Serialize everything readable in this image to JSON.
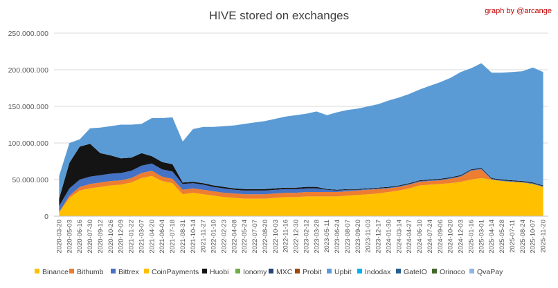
{
  "chart_data": {
    "type": "area",
    "title": "HIVE stored on exchanges",
    "credit": "graph by @arcange",
    "xlabel": "",
    "ylabel": "",
    "ylim": [
      0,
      250000000
    ],
    "y_ticks": [
      0,
      50000000,
      100000000,
      150000000,
      200000000,
      250000000
    ],
    "y_tick_labels": [
      "0",
      "50.000.000",
      "100.000.000",
      "150.000.000",
      "200.000.000",
      "250.000.000"
    ],
    "grid": true,
    "legend_position": "bottom",
    "x_tick_labels": [
      "2020-03-20",
      "2020-05-03",
      "2020-06-16",
      "2020-07-30",
      "2020-09-12",
      "2020-10-26",
      "2020-12-09",
      "2021-01-22",
      "2021-03-07",
      "2021-04-20",
      "2021-06-04",
      "2021-07-18",
      "2021-08-31",
      "2021-10-14",
      "2021-11-27",
      "2022-01-10",
      "2022-02-23",
      "2022-04-08",
      "2022-05-24",
      "2022-07-07",
      "2022-08-20",
      "2022-10-03",
      "2022-11-16",
      "2022-12-30",
      "2023-02-12",
      "2023-03-28",
      "2023-05-11",
      "2023-06-24",
      "2023-08-07",
      "2023-09-20",
      "2023-11-03",
      "2023-12-17",
      "2024-01-30",
      "2024-03-14",
      "2024-04-27",
      "2024-06-10",
      "2024-07-24",
      "2024-09-06",
      "2024-10-20",
      "2024-12-03",
      "2025-01-16",
      "2025-03-01",
      "2025-04-14",
      "2025-05-28",
      "2025-07-11",
      "2025-08-24",
      "2025-10-07",
      "2025-11-20"
    ],
    "x": [
      "2020-03-20",
      "2020-05-03",
      "2020-06-16",
      "2020-07-30",
      "2020-09-12",
      "2020-10-26",
      "2020-12-09",
      "2021-01-22",
      "2021-03-07",
      "2021-04-20",
      "2021-06-04",
      "2021-07-18",
      "2021-08-31",
      "2021-10-14",
      "2021-11-27",
      "2022-01-10",
      "2022-02-23",
      "2022-04-08",
      "2022-05-24",
      "2022-07-07",
      "2022-08-20",
      "2022-10-03",
      "2022-11-16",
      "2022-12-30",
      "2023-02-12",
      "2023-03-28",
      "2023-05-11",
      "2023-06-24",
      "2023-08-07",
      "2023-09-20",
      "2023-11-03",
      "2023-12-17",
      "2024-01-30",
      "2024-03-14",
      "2024-04-27",
      "2024-06-10",
      "2024-07-24",
      "2024-09-06",
      "2024-10-20",
      "2024-12-03",
      "2025-01-16",
      "2025-03-01",
      "2025-04-14",
      "2025-05-28",
      "2025-07-11",
      "2025-08-24",
      "2025-10-07",
      "2025-11-20"
    ],
    "series": [
      {
        "name": "Binance",
        "color": "#ffc000",
        "values": [
          5000000,
          25000000,
          35000000,
          38000000,
          40000000,
          42000000,
          43000000,
          46000000,
          52000000,
          55000000,
          48000000,
          45000000,
          30000000,
          32000000,
          30000000,
          28000000,
          26000000,
          25000000,
          24000000,
          24000000,
          24000000,
          25000000,
          26000000,
          26000000,
          27000000,
          27000000,
          27000000,
          27000000,
          28000000,
          29000000,
          30000000,
          31000000,
          33000000,
          35000000,
          38000000,
          42000000,
          43000000,
          44000000,
          45000000,
          47000000,
          50000000,
          52000000,
          50000000,
          48000000,
          47000000,
          46000000,
          44000000,
          40000000
        ]
      },
      {
        "name": "Bithumb",
        "color": "#ed7d31",
        "values": [
          1000000,
          3000000,
          5000000,
          6000000,
          6000000,
          6000000,
          6000000,
          6000000,
          7000000,
          7000000,
          6000000,
          6000000,
          6000000,
          6000000,
          6000000,
          6000000,
          6000000,
          6000000,
          6000000,
          6000000,
          6000000,
          6000000,
          6000000,
          6000000,
          6000000,
          6000000,
          6000000,
          6000000,
          6000000,
          6000000,
          6000000,
          6000000,
          5000000,
          5000000,
          5000000,
          5000000,
          5000000,
          5000000,
          6000000,
          7000000,
          12000000,
          12000000,
          0,
          0,
          0,
          0,
          0,
          0
        ]
      },
      {
        "name": "Bittrex",
        "color": "#4472c4",
        "values": [
          8000000,
          10000000,
          10000000,
          10000000,
          10000000,
          10000000,
          10000000,
          10000000,
          10000000,
          10000000,
          10000000,
          10000000,
          8000000,
          7000000,
          7000000,
          6000000,
          6000000,
          5000000,
          5000000,
          5000000,
          5000000,
          5000000,
          5000000,
          5000000,
          5000000,
          5000000,
          3000000,
          2000000,
          2000000,
          1000000,
          1000000,
          1000000,
          1000000,
          1000000,
          1000000,
          1000000,
          1000000,
          1000000,
          1000000,
          1000000,
          1000000,
          1000000,
          1000000,
          1000000,
          1000000,
          1000000,
          1000000,
          1000000
        ]
      },
      {
        "name": "CoinPayments",
        "color": "#ffc000",
        "values": [
          0,
          0,
          0,
          0,
          0,
          0,
          0,
          0,
          0,
          0,
          0,
          0,
          0,
          0,
          0,
          0,
          0,
          0,
          0,
          0,
          0,
          0,
          0,
          0,
          0,
          0,
          0,
          0,
          0,
          0,
          0,
          0,
          0,
          0,
          0,
          0,
          0,
          0,
          0,
          0,
          0,
          0,
          0,
          0,
          0,
          0,
          0,
          0
        ]
      },
      {
        "name": "Huobi",
        "color": "#141414",
        "values": [
          10000000,
          35000000,
          45000000,
          45000000,
          30000000,
          25000000,
          20000000,
          18000000,
          17000000,
          10000000,
          10000000,
          10000000,
          2000000,
          2000000,
          2000000,
          2000000,
          2000000,
          2000000,
          2000000,
          2000000,
          2000000,
          2000000,
          2000000,
          2000000,
          2000000,
          2000000,
          1000000,
          1000000,
          1000000,
          1000000,
          1000000,
          1000000,
          1000000,
          1000000,
          1000000,
          1000000,
          1000000,
          1000000,
          1000000,
          1000000,
          1000000,
          1000000,
          1000000,
          1000000,
          1000000,
          1000000,
          1000000,
          1000000
        ]
      },
      {
        "name": "Ionomy",
        "color": "#70ad47",
        "values": [
          0,
          0,
          0,
          0,
          0,
          0,
          0,
          0,
          0,
          0,
          0,
          0,
          0,
          0,
          0,
          0,
          0,
          0,
          0,
          0,
          0,
          0,
          0,
          0,
          0,
          0,
          0,
          0,
          0,
          0,
          0,
          0,
          0,
          0,
          0,
          0,
          0,
          0,
          0,
          0,
          0,
          0,
          0,
          0,
          0,
          0,
          0,
          0
        ]
      },
      {
        "name": "MXC",
        "color": "#264478",
        "values": [
          0,
          0,
          0,
          0,
          0,
          0,
          0,
          0,
          0,
          0,
          0,
          0,
          0,
          0,
          0,
          0,
          0,
          0,
          0,
          0,
          0,
          0,
          0,
          0,
          0,
          0,
          0,
          0,
          0,
          0,
          0,
          0,
          0,
          0,
          0,
          0,
          0,
          0,
          0,
          0,
          0,
          0,
          0,
          0,
          0,
          0,
          0,
          0
        ]
      },
      {
        "name": "Probit",
        "color": "#9e480e",
        "values": [
          0,
          0,
          0,
          0,
          0,
          0,
          0,
          0,
          0,
          0,
          0,
          0,
          0,
          0,
          0,
          0,
          0,
          0,
          0,
          0,
          0,
          0,
          0,
          0,
          0,
          0,
          0,
          0,
          0,
          0,
          0,
          0,
          0,
          0,
          0,
          0,
          0,
          0,
          0,
          0,
          0,
          0,
          0,
          0,
          0,
          0,
          0,
          0
        ]
      },
      {
        "name": "Upbit",
        "color": "#5b9bd5",
        "values": [
          31000000,
          27000000,
          10000000,
          21000000,
          35000000,
          40000000,
          46000000,
          45000000,
          40000000,
          52000000,
          60000000,
          64000000,
          56000000,
          72000000,
          77000000,
          80000000,
          83000000,
          86000000,
          89000000,
          91000000,
          93000000,
          95000000,
          97000000,
          99000000,
          100000000,
          103000000,
          101000000,
          106000000,
          108000000,
          110000000,
          112000000,
          114000000,
          118000000,
          120000000,
          122000000,
          124000000,
          128000000,
          132000000,
          136000000,
          141000000,
          138000000,
          143000000,
          144000000,
          146000000,
          148000000,
          150000000,
          157000000,
          155000000
        ]
      },
      {
        "name": "Indodax",
        "color": "#00b0f0",
        "values": [
          0,
          0,
          0,
          0,
          0,
          0,
          0,
          0,
          0,
          0,
          0,
          0,
          0,
          0,
          0,
          0,
          0,
          0,
          0,
          0,
          0,
          0,
          0,
          0,
          0,
          0,
          0,
          0,
          0,
          0,
          0,
          0,
          0,
          0,
          0,
          0,
          0,
          0,
          0,
          0,
          0,
          0,
          0,
          0,
          0,
          0,
          0,
          0
        ]
      },
      {
        "name": "GateIO",
        "color": "#255e91",
        "values": [
          0,
          0,
          0,
          0,
          0,
          0,
          0,
          0,
          0,
          0,
          0,
          0,
          0,
          0,
          0,
          0,
          0,
          0,
          0,
          0,
          0,
          0,
          0,
          0,
          0,
          0,
          0,
          0,
          0,
          0,
          0,
          0,
          0,
          0,
          0,
          0,
          0,
          0,
          0,
          0,
          0,
          0,
          0,
          0,
          0,
          0,
          0,
          0
        ]
      },
      {
        "name": "Orinoco",
        "color": "#43682b",
        "values": [
          0,
          0,
          0,
          0,
          0,
          0,
          0,
          0,
          0,
          0,
          0,
          0,
          0,
          0,
          0,
          0,
          0,
          0,
          0,
          0,
          0,
          0,
          0,
          0,
          0,
          0,
          0,
          0,
          0,
          0,
          0,
          0,
          0,
          0,
          0,
          0,
          0,
          0,
          0,
          0,
          0,
          0,
          0,
          0,
          0,
          0,
          0,
          0
        ]
      },
      {
        "name": "QvaPay",
        "color": "#8fb4e3",
        "values": [
          0,
          0,
          0,
          0,
          0,
          0,
          0,
          0,
          0,
          0,
          0,
          0,
          0,
          0,
          0,
          0,
          0,
          0,
          0,
          0,
          0,
          0,
          0,
          0,
          0,
          0,
          0,
          0,
          0,
          0,
          0,
          0,
          0,
          0,
          0,
          0,
          0,
          0,
          0,
          0,
          0,
          0,
          0,
          0,
          0,
          0,
          0,
          0
        ]
      }
    ]
  }
}
